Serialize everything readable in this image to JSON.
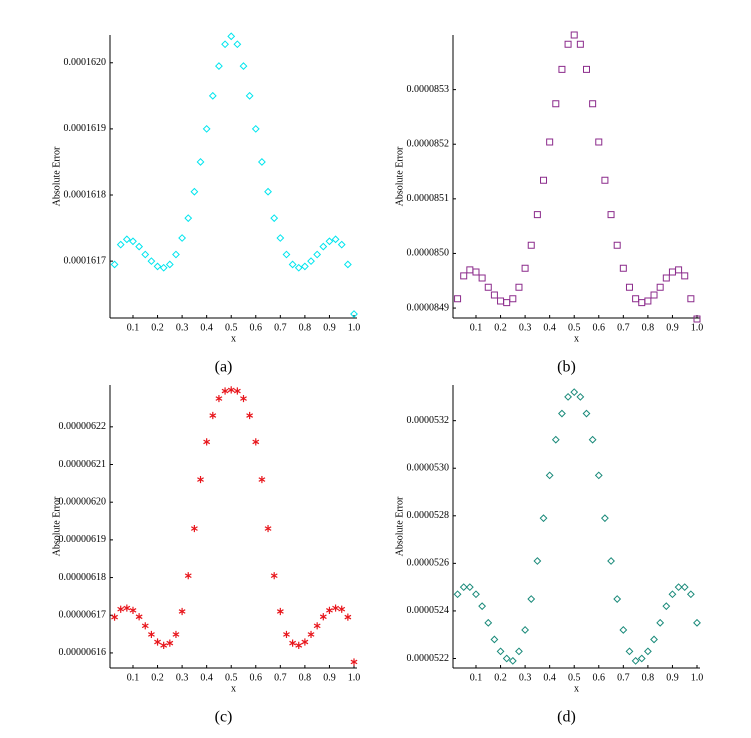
{
  "chart_data": [
    {
      "type": "scatter",
      "label": "(a)",
      "xlabel": "x",
      "ylabel": "Absolute Error",
      "marker": "diamond",
      "color": "#00e5ee",
      "x": [
        0.025,
        0.05,
        0.075,
        0.1,
        0.125,
        0.15,
        0.175,
        0.2,
        0.225,
        0.25,
        0.275,
        0.3,
        0.325,
        0.35,
        0.375,
        0.4,
        0.425,
        0.45,
        0.475,
        0.5,
        0.525,
        0.55,
        0.575,
        0.6,
        0.625,
        0.65,
        0.675,
        0.7,
        0.725,
        0.75,
        0.775,
        0.8,
        0.825,
        0.85,
        0.875,
        0.9,
        0.925,
        0.95,
        0.975,
        1
      ],
      "values": [
        0.000161695,
        0.000161725,
        0.000161733,
        0.00016173,
        0.000161722,
        0.00016171,
        0.0001617,
        0.000161692,
        0.00016169,
        0.000161695,
        0.00016171,
        0.000161735,
        0.000161765,
        0.000161805,
        0.00016185,
        0.0001619,
        0.00016195,
        0.000161995,
        0.000162028,
        0.00016204,
        0.000162028,
        0.000161995,
        0.00016195,
        0.0001619,
        0.00016185,
        0.000161805,
        0.000161765,
        0.000161735,
        0.00016171,
        0.000161695,
        0.00016169,
        0.000161692,
        0.0001617,
        0.00016171,
        0.000161722,
        0.00016173,
        0.000161733,
        0.000161725,
        0.000161695,
        0.00016162
      ],
      "xlim": [
        0.0064,
        1.0122
      ],
      "xticks": [
        0.1,
        0.2,
        0.3,
        0.4,
        0.5,
        0.6,
        0.7,
        0.8,
        0.9,
        {
          "value": 1,
          "label": "1.0"
        }
      ],
      "ylim": [
        0.000161614,
        0.000162042
      ],
      "yticks": [
        0.0001617,
        0.0001618,
        0.0001619,
        {
          "value": 0.000162,
          "label": "0.0001620"
        }
      ]
    },
    {
      "type": "scatter",
      "label": "(b)",
      "xlabel": "x",
      "ylabel": "Absolute Error",
      "marker": "square",
      "color": "#8b2a8b",
      "x": [
        0.025,
        0.05,
        0.075,
        0.1,
        0.125,
        0.15,
        0.175,
        0.2,
        0.225,
        0.25,
        0.275,
        0.3,
        0.325,
        0.35,
        0.375,
        0.4,
        0.425,
        0.45,
        0.475,
        0.5,
        0.525,
        0.55,
        0.575,
        0.6,
        0.625,
        0.65,
        0.675,
        0.7,
        0.725,
        0.75,
        0.775,
        0.8,
        0.825,
        0.85,
        0.875,
        0.9,
        0.925,
        0.95,
        0.975,
        1
      ],
      "values": [
        8.4917e-05,
        8.4959e-05,
        8.497e-05,
        8.4966e-05,
        8.4955e-05,
        8.4938e-05,
        8.4924e-05,
        8.4913e-05,
        8.491e-05,
        8.4917e-05,
        8.4938e-05,
        8.4973e-05,
        8.5015e-05,
        8.5071e-05,
        8.5134e-05,
        8.5204e-05,
        8.5274e-05,
        8.5337e-05,
        8.5383e-05,
        8.54e-05,
        8.5383e-05,
        8.5337e-05,
        8.5274e-05,
        8.5204e-05,
        8.5134e-05,
        8.5071e-05,
        8.5015e-05,
        8.4973e-05,
        8.4938e-05,
        8.4917e-05,
        8.491e-05,
        8.4913e-05,
        8.4924e-05,
        8.4938e-05,
        8.4955e-05,
        8.4966e-05,
        8.497e-05,
        8.4959e-05,
        8.4917e-05,
        8.488e-05
      ],
      "xlim": [
        0.0064,
        1.0122
      ],
      "xticks": [
        0.1,
        0.2,
        0.3,
        0.4,
        0.5,
        0.6,
        0.7,
        0.8,
        0.9,
        {
          "value": 1,
          "label": "1.0"
        }
      ],
      "ylim": [
        8.48818e-05,
        8.54e-05
      ],
      "yticks": [
        8.49e-05,
        {
          "value": 8.5e-05,
          "label": "0.0000850"
        },
        8.51e-05,
        8.52e-05,
        8.53e-05
      ]
    },
    {
      "type": "scatter",
      "label": "(c)",
      "xlabel": "x",
      "ylabel": "Absolute Error",
      "marker": "star",
      "color": "#e8161c",
      "x": [
        0.025,
        0.05,
        0.075,
        0.1,
        0.125,
        0.15,
        0.175,
        0.2,
        0.225,
        0.25,
        0.275,
        0.3,
        0.325,
        0.35,
        0.375,
        0.4,
        0.425,
        0.45,
        0.475,
        0.5,
        0.525,
        0.55,
        0.575,
        0.6,
        0.625,
        0.65,
        0.675,
        0.7,
        0.725,
        0.75,
        0.775,
        0.8,
        0.825,
        0.85,
        0.875,
        0.9,
        0.925,
        0.95,
        0.975,
        1
      ],
      "values": [
        6.1695e-06,
        6.1716e-06,
        6.1719e-06,
        6.1713e-06,
        6.1696e-06,
        6.1672e-06,
        6.1649e-06,
        6.1629e-06,
        6.162e-06,
        6.1626e-06,
        6.1649e-06,
        6.171e-06,
        6.1805e-06,
        6.193e-06,
        6.206e-06,
        6.216e-06,
        6.223e-06,
        6.2275e-06,
        6.2295e-06,
        6.2298e-06,
        6.2295e-06,
        6.2275e-06,
        6.223e-06,
        6.216e-06,
        6.206e-06,
        6.193e-06,
        6.1805e-06,
        6.171e-06,
        6.1649e-06,
        6.1626e-06,
        6.162e-06,
        6.1629e-06,
        6.1649e-06,
        6.1672e-06,
        6.1696e-06,
        6.1713e-06,
        6.1719e-06,
        6.1716e-06,
        6.1695e-06,
        6.1576e-06
      ],
      "xlim": [
        0.0064,
        1.0122
      ],
      "xticks": [
        0.1,
        0.2,
        0.3,
        0.4,
        0.5,
        0.6,
        0.7,
        0.8,
        0.9,
        {
          "value": 1,
          "label": "1.0"
        }
      ],
      "ylim": [
        6.156e-06,
        6.2311e-06
      ],
      "yticks": [
        6.16e-06,
        6.17e-06,
        6.18e-06,
        6.19e-06,
        {
          "value": 6.2e-06,
          "label": "0.00000620"
        },
        6.21e-06,
        6.22e-06
      ]
    },
    {
      "type": "scatter",
      "label": "(d)",
      "xlabel": "x",
      "ylabel": "Absolute Error",
      "marker": "diamond",
      "color": "#1a8a7a",
      "x": [
        0.025,
        0.05,
        0.075,
        0.1,
        0.125,
        0.15,
        0.175,
        0.2,
        0.225,
        0.25,
        0.275,
        0.3,
        0.325,
        0.35,
        0.375,
        0.4,
        0.425,
        0.45,
        0.475,
        0.5,
        0.525,
        0.55,
        0.575,
        0.6,
        0.625,
        0.65,
        0.675,
        0.7,
        0.725,
        0.75,
        0.775,
        0.8,
        0.825,
        0.85,
        0.875,
        0.9,
        0.925,
        0.95,
        0.975,
        1
      ],
      "values": [
        5.247e-05,
        5.25e-05,
        5.25e-05,
        5.247e-05,
        5.242e-05,
        5.235e-05,
        5.228e-05,
        5.223e-05,
        5.22e-05,
        5.219e-05,
        5.223e-05,
        5.232e-05,
        5.245e-05,
        5.261e-05,
        5.279e-05,
        5.297e-05,
        5.312e-05,
        5.323e-05,
        5.33e-05,
        5.332e-05,
        5.33e-05,
        5.323e-05,
        5.312e-05,
        5.297e-05,
        5.279e-05,
        5.261e-05,
        5.245e-05,
        5.232e-05,
        5.223e-05,
        5.219e-05,
        5.22e-05,
        5.223e-05,
        5.228e-05,
        5.235e-05,
        5.242e-05,
        5.247e-05,
        5.25e-05,
        5.25e-05,
        5.247e-05,
        5.235e-05
      ],
      "xlim": [
        0.0064,
        1.0122
      ],
      "xticks": [
        0.1,
        0.2,
        0.3,
        0.4,
        0.5,
        0.6,
        0.7,
        0.8,
        0.9,
        {
          "value": 1,
          "label": "1.0"
        }
      ],
      "ylim": [
        5.216e-05,
        5.335e-05
      ],
      "yticks": [
        5.22e-05,
        5.24e-05,
        5.26e-05,
        5.28e-05,
        {
          "value": 5.3e-05,
          "label": "0.0000530"
        },
        5.32e-05
      ]
    }
  ]
}
